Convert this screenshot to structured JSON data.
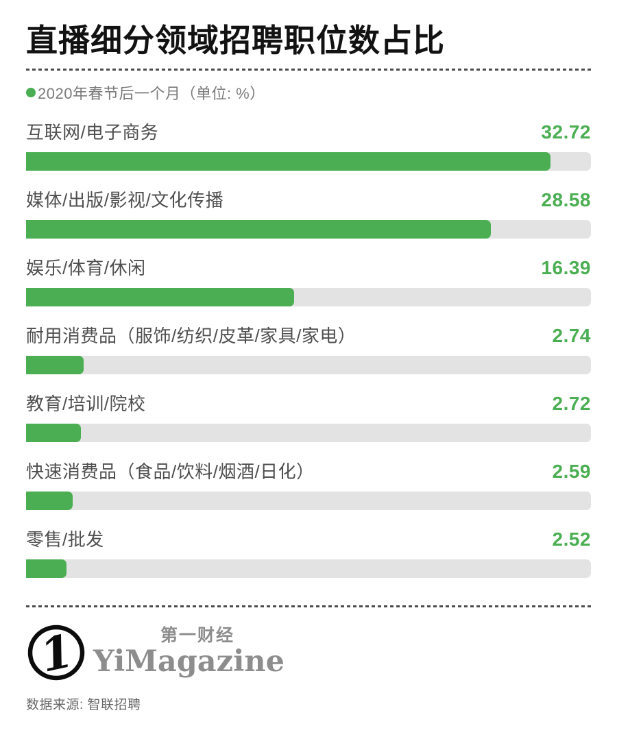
{
  "header": {
    "title": "直播细分领域招聘职位数占比",
    "legend_label": "2020年春节后一个月（单位: %）"
  },
  "chart_data": {
    "type": "bar",
    "orientation": "horizontal",
    "title": "直播细分领域招聘职位数占比",
    "subtitle": "2020年春节后一个月（单位: %）",
    "unit": "%",
    "categories": [
      "互联网/电子商务",
      "媒体/出版/影视/文化传播",
      "娱乐/体育/休闲",
      "耐用消费品（服饰/纺织/皮革/家具/家电）",
      "教育/培训/院校",
      "快速消费品（食品/饮料/烟酒/日化）",
      "零售/批发"
    ],
    "values": [
      32.72,
      28.58,
      16.39,
      2.74,
      2.72,
      2.59,
      2.52
    ],
    "value_labels": [
      "32.72",
      "28.58",
      "16.39",
      "2.74",
      "2.72",
      "2.59",
      "2.52"
    ],
    "xlim": [
      0,
      35
    ],
    "bar_display_pct": [
      92.8,
      82.3,
      47.4,
      10.2,
      9.7,
      8.3,
      7.2
    ],
    "grid": false,
    "legend_position": "top-left"
  },
  "colors": {
    "accent_green": "#4BAE52",
    "track_gray": "#E3E3E3",
    "title_black": "#121212",
    "label_gray": "#4F4F4F",
    "legend_gray": "#7B7B7B",
    "brand_gray": "#8D8D8D"
  },
  "footer": {
    "logo_mark": "1",
    "brand_cn": "第一财经",
    "brand_en": "YiMagazine",
    "source": "数据来源: 智联招聘"
  }
}
